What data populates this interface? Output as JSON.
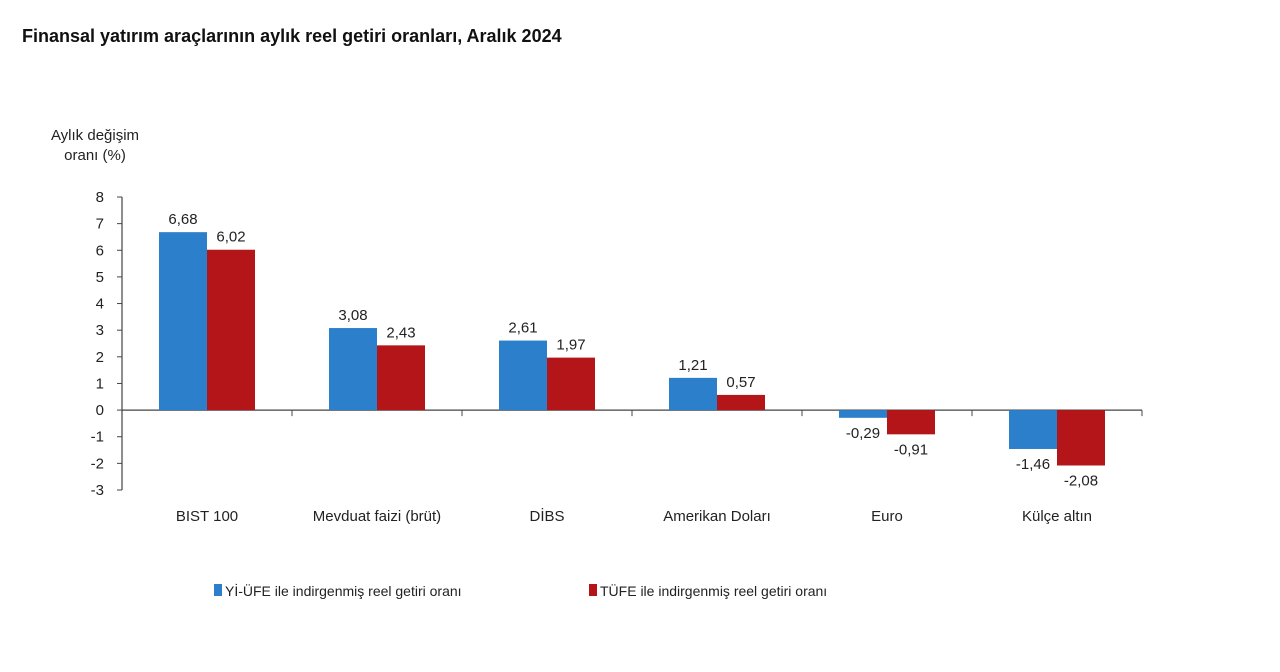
{
  "chart_data": {
    "type": "bar",
    "title": "Finansal yatırım araçlarının aylık reel getiri oranları, Aralık 2024",
    "ylabel_lines": [
      "Aylık değişim",
      "oranı (%)"
    ],
    "xlabel": "",
    "ylim": [
      -3,
      8
    ],
    "yticks": [
      8,
      7,
      6,
      5,
      4,
      3,
      2,
      1,
      0,
      -1,
      -2,
      -3
    ],
    "grid": false,
    "legend_placement": "bottom",
    "categories": [
      "BIST 100",
      "Mevduat faizi (brüt)",
      "DİBS",
      "Amerikan Doları",
      "Euro",
      "Külçe altın"
    ],
    "series": [
      {
        "name": "Yİ-ÜFE ile indirgenmiş reel getiri oranı",
        "color": "#2b7fcb",
        "values": [
          6.68,
          3.08,
          2.61,
          1.21,
          -0.29,
          -1.46
        ],
        "labels": [
          "6,68",
          "3,08",
          "2,61",
          "1,21",
          "-0,29",
          "-1,46"
        ]
      },
      {
        "name": "TÜFE ile indirgenmiş reel getiri oranı",
        "color": "#b31518",
        "values": [
          6.02,
          2.43,
          1.97,
          0.57,
          -0.91,
          -2.08
        ],
        "labels": [
          "6,02",
          "2,43",
          "1,97",
          "0,57",
          "-0,91",
          "-2,08"
        ]
      }
    ]
  }
}
